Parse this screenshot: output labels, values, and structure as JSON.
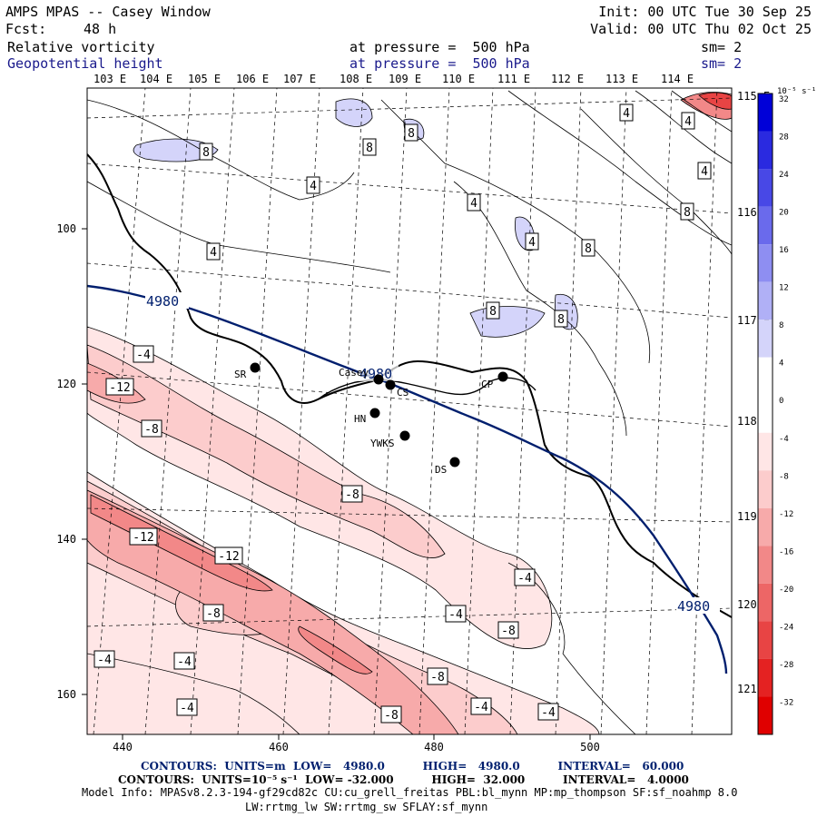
{
  "header": {
    "title": "AMPS MPAS -- Casey Window",
    "fcst_label": "Fcst:",
    "fcst_value": "48 h",
    "init": "Init: 00 UTC Tue 30 Sep 25",
    "valid": "Valid: 00 UTC Thu 02 Oct 25",
    "field1": {
      "name": "Relative vorticity",
      "level": "at pressure =  500 hPa",
      "sm": "sm= 2"
    },
    "field2": {
      "name": "Geopotential height",
      "level": "at pressure =  500 hPa",
      "sm": "sm= 2"
    }
  },
  "axes": {
    "top_lon_labels": [
      "103 E",
      "104 E",
      "105 E",
      "106 E",
      "107 E",
      "108 E",
      "109 E",
      "110 E",
      "111 E",
      "112 E",
      "113 E",
      "114 E"
    ],
    "right_lon_labels": [
      "115 E",
      "116 E",
      "117 E",
      "118 E",
      "119 E",
      "120 E",
      "121 E"
    ],
    "left_y_labels": [
      "100",
      "120",
      "140",
      "160"
    ],
    "bottom_x_labels": [
      "440",
      "460",
      "480",
      "500"
    ]
  },
  "colorbar": {
    "units": "10⁻⁵ s⁻¹",
    "labels": [
      "32",
      "28",
      "24",
      "20",
      "16",
      "12",
      "8",
      "4",
      "0",
      "-4",
      "-8",
      "-12",
      "-16",
      "-20",
      "-24",
      "-28",
      "-32"
    ],
    "colors": [
      "#0000d8",
      "#2a2ae0",
      "#4848e6",
      "#6a6aec",
      "#8e8ef2",
      "#b0b0f6",
      "#d4d4fa",
      "#ffffff",
      "#ffffff",
      "#ffe6e6",
      "#fccccc",
      "#f7aaaa",
      "#f28888",
      "#ed6666",
      "#e84444",
      "#e42222",
      "#e00000"
    ]
  },
  "stations": [
    {
      "name": "SR"
    },
    {
      "name": "Casey"
    },
    {
      "name": "CS"
    },
    {
      "name": "HN"
    },
    {
      "name": "YWKS"
    },
    {
      "name": "DS"
    },
    {
      "name": "CP"
    }
  ],
  "height_contour_labels": [
    "4980",
    "4980",
    "4980"
  ],
  "vorticity_labels": {
    "positive": [
      "8",
      "8",
      "8",
      "4",
      "4",
      "4",
      "4",
      "4",
      "4",
      "8",
      "8",
      "4",
      "8",
      "8"
    ],
    "negative": [
      "-4",
      "-12",
      "-8",
      "-8",
      "-12",
      "-12",
      "-8",
      "-4",
      "-4",
      "-8",
      "-4",
      "-4",
      "-8",
      "-4",
      "-8",
      "-4",
      "-4"
    ]
  },
  "footer": {
    "contours1": "CONTOURS:  UNITS=m  LOW=   4980.0          HIGH=   4980.0          INTERVAL=   60.000",
    "contours2": "CONTOURS:  UNITS=10⁻⁵ s⁻¹  LOW= -32.000          HIGH=  32.000          INTERVAL=   4.0000",
    "model_info": "Model Info: MPASv8.2.3-194-gf29cd82c CU:cu_grell_freitas PBL:bl_mynn MP:mp_thompson SF:sf_noahmp 8.0",
    "model_info2": "LW:rrtmg_lw SW:rrtmg_sw SFLAY:sf_mynn"
  }
}
